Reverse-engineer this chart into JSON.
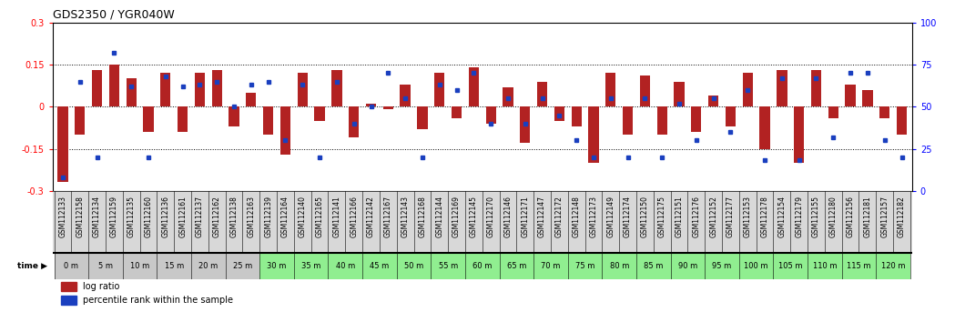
{
  "title": "GDS2350 / YGR040W",
  "gsm_labels": [
    "GSM112133",
    "GSM112158",
    "GSM112134",
    "GSM112159",
    "GSM112135",
    "GSM112160",
    "GSM112136",
    "GSM112161",
    "GSM112137",
    "GSM112162",
    "GSM112138",
    "GSM112163",
    "GSM112139",
    "GSM112164",
    "GSM112140",
    "GSM112165",
    "GSM112141",
    "GSM112166",
    "GSM112142",
    "GSM112167",
    "GSM112143",
    "GSM112168",
    "GSM112144",
    "GSM112169",
    "GSM112145",
    "GSM112170",
    "GSM112146",
    "GSM112171",
    "GSM112147",
    "GSM112172",
    "GSM112148",
    "GSM112173",
    "GSM112149",
    "GSM112174",
    "GSM112150",
    "GSM112175",
    "GSM112151",
    "GSM112176",
    "GSM112152",
    "GSM112177",
    "GSM112153",
    "GSM112178",
    "GSM112154",
    "GSM112179",
    "GSM112155",
    "GSM112180",
    "GSM112156",
    "GSM112181",
    "GSM112157",
    "GSM112182"
  ],
  "time_labels": [
    "0 m",
    "5 m",
    "10 m",
    "15 m",
    "20 m",
    "25 m",
    "30 m",
    "35 m",
    "40 m",
    "45 m",
    "50 m",
    "55 m",
    "60 m",
    "65 m",
    "70 m",
    "75 m",
    "80 m",
    "85 m",
    "90 m",
    "95 m",
    "100 m",
    "105 m",
    "110 m",
    "115 m",
    "120 m"
  ],
  "log_ratio": [
    -0.27,
    -0.1,
    0.13,
    0.15,
    0.1,
    -0.09,
    0.12,
    -0.09,
    0.12,
    0.13,
    -0.07,
    0.05,
    -0.1,
    -0.17,
    0.12,
    -0.05,
    0.13,
    -0.11,
    0.01,
    -0.01,
    0.08,
    -0.08,
    0.12,
    -0.04,
    0.14,
    -0.06,
    0.07,
    -0.13,
    0.09,
    -0.05,
    -0.07,
    -0.2,
    0.12,
    -0.1,
    0.11,
    -0.1,
    0.09,
    -0.09,
    0.04,
    -0.07,
    0.12,
    -0.15,
    0.13,
    -0.2,
    0.13,
    -0.04,
    0.08,
    0.06,
    -0.04,
    -0.1
  ],
  "percentile_rank": [
    8,
    65,
    20,
    82,
    62,
    20,
    68,
    62,
    63,
    65,
    50,
    63,
    65,
    30,
    63,
    20,
    65,
    40,
    50,
    70,
    55,
    20,
    63,
    60,
    70,
    40,
    55,
    40,
    55,
    45,
    30,
    20,
    55,
    20,
    55,
    20,
    52,
    30,
    55,
    35,
    60,
    18,
    67,
    18,
    67,
    32,
    70,
    70,
    30,
    20
  ],
  "bar_color": "#b22222",
  "dot_color": "#1a3fbf",
  "bg_color": "#ffffff",
  "ylim": [
    -0.3,
    0.3
  ],
  "y2lim": [
    0,
    100
  ],
  "y_ticks": [
    -0.3,
    -0.15,
    0,
    0.15,
    0.3
  ],
  "y2_ticks": [
    0,
    25,
    50,
    75,
    100
  ],
  "gsm_bg_color": "#d8d8d8",
  "time_bg_gray": "#c8c8c8",
  "time_bg_green": "#90ee90",
  "gray_count": 6
}
